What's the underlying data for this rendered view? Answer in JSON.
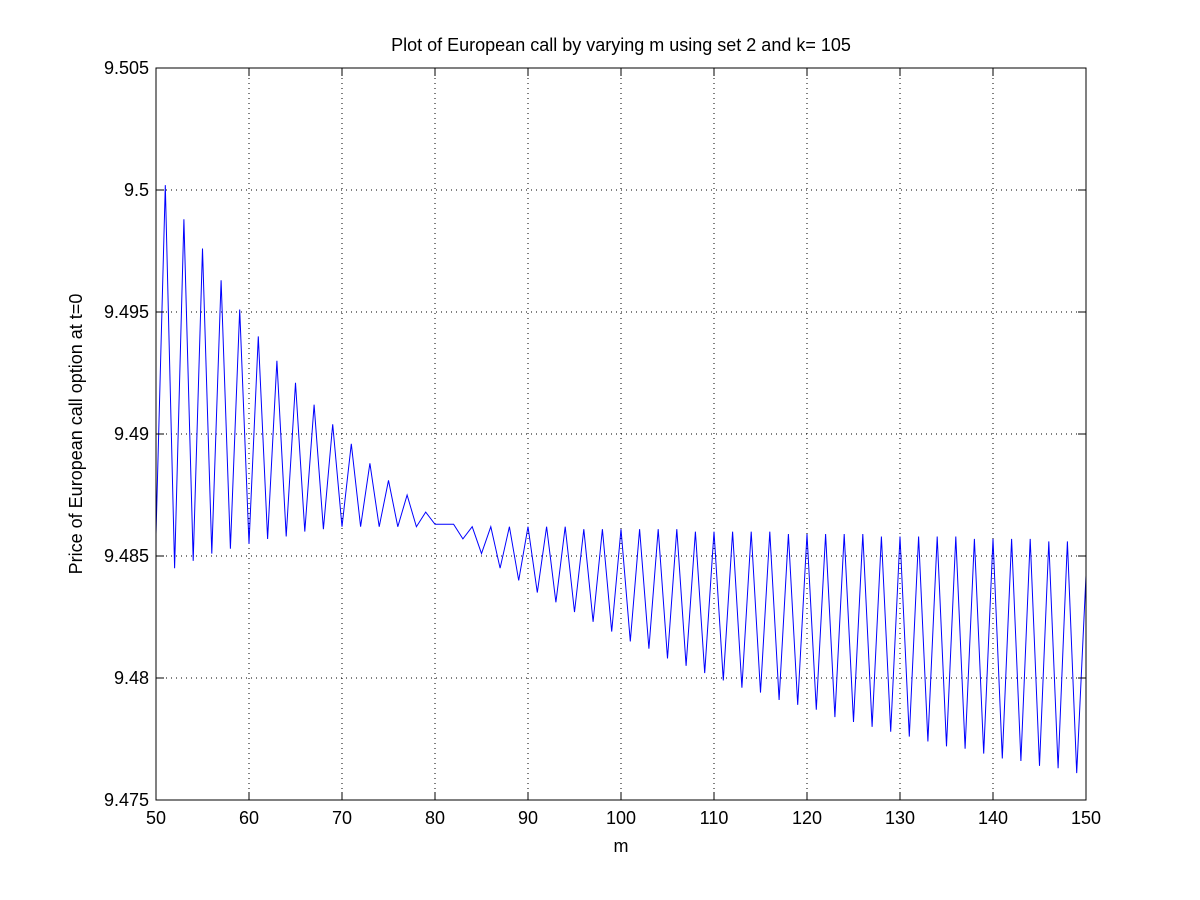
{
  "chart_data": {
    "type": "line",
    "title": "Plot of European call by varying m using set 2 and k= 105",
    "xlabel": "m",
    "ylabel": "Price of European call option at t=0",
    "xlim": [
      50,
      150
    ],
    "ylim": [
      9.475,
      9.505
    ],
    "xticks": [
      50,
      60,
      70,
      80,
      90,
      100,
      110,
      120,
      130,
      140,
      150
    ],
    "yticks": [
      9.475,
      9.48,
      9.485,
      9.49,
      9.495,
      9.5,
      9.505
    ],
    "xtick_labels": [
      "50",
      "60",
      "70",
      "80",
      "90",
      "100",
      "110",
      "120",
      "130",
      "140",
      "150"
    ],
    "ytick_labels": [
      "9.475",
      "9.48",
      "9.485",
      "9.49",
      "9.495",
      "9.5",
      "9.505"
    ],
    "grid": true,
    "legend": "none",
    "series": [
      {
        "color": "#0000ff",
        "x": [
          50,
          51,
          52,
          53,
          54,
          55,
          56,
          57,
          58,
          59,
          60,
          61,
          62,
          63,
          64,
          65,
          66,
          67,
          68,
          69,
          70,
          71,
          72,
          73,
          74,
          75,
          76,
          77,
          78,
          79,
          80,
          81,
          82,
          83,
          84,
          85,
          86,
          87,
          88,
          89,
          90,
          91,
          92,
          93,
          94,
          95,
          96,
          97,
          98,
          99,
          100,
          101,
          102,
          103,
          104,
          105,
          106,
          107,
          108,
          109,
          110,
          111,
          112,
          113,
          114,
          115,
          116,
          117,
          118,
          119,
          120,
          121,
          122,
          123,
          124,
          125,
          126,
          127,
          128,
          129,
          130,
          131,
          132,
          133,
          134,
          135,
          136,
          137,
          138,
          139,
          140,
          141,
          142,
          143,
          144,
          145,
          146,
          147,
          148,
          149,
          150
        ],
        "y": [
          9.4859,
          9.5002,
          9.4845,
          9.4988,
          9.4848,
          9.4976,
          9.4851,
          9.4963,
          9.4853,
          9.4951,
          9.4855,
          9.494,
          9.4857,
          9.493,
          9.4858,
          9.4921,
          9.486,
          9.4912,
          9.4861,
          9.4904,
          9.4862,
          9.4896,
          9.4862,
          9.4888,
          9.4862,
          9.4881,
          9.4862,
          9.4875,
          9.4862,
          9.4868,
          9.4863,
          9.4863,
          9.4863,
          9.4857,
          9.4862,
          9.4851,
          9.4862,
          9.4845,
          9.4862,
          9.484,
          9.4862,
          9.4835,
          9.4862,
          9.4831,
          9.4862,
          9.4827,
          9.4861,
          9.4823,
          9.4861,
          9.4819,
          9.4861,
          9.4815,
          9.4861,
          9.4812,
          9.4861,
          9.4808,
          9.4861,
          9.4805,
          9.486,
          9.4802,
          9.486,
          9.4799,
          9.486,
          9.4796,
          9.486,
          9.4794,
          9.486,
          9.4791,
          9.4859,
          9.4789,
          9.4859,
          9.4787,
          9.4859,
          9.4784,
          9.4859,
          9.4782,
          9.4859,
          9.478,
          9.4858,
          9.4778,
          9.4858,
          9.4776,
          9.4858,
          9.4774,
          9.4858,
          9.4772,
          9.4858,
          9.4771,
          9.4857,
          9.4769,
          9.4857,
          9.4767,
          9.4857,
          9.4766,
          9.4857,
          9.4764,
          9.4856,
          9.4763,
          9.4856,
          9.4761,
          9.4842
        ]
      }
    ]
  }
}
